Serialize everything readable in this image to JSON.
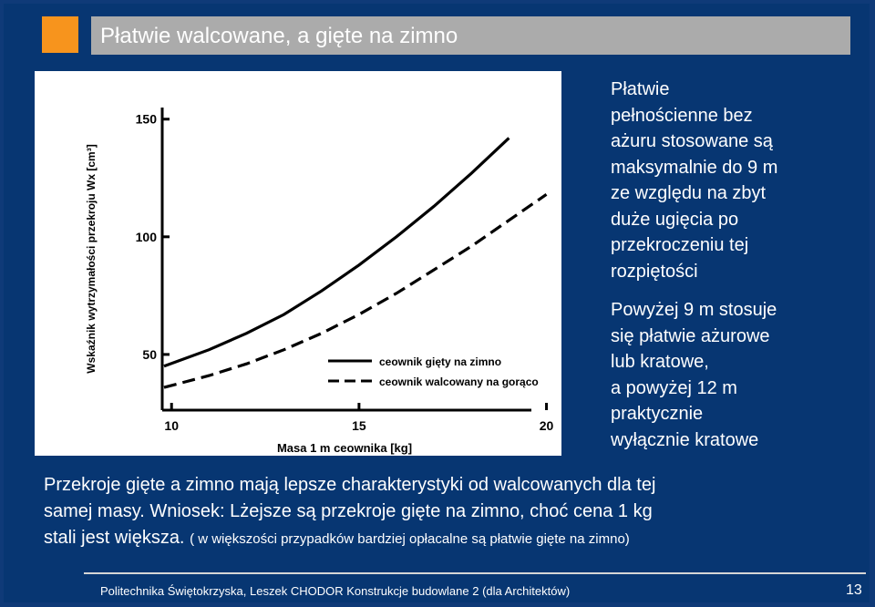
{
  "slide": {
    "title": "Płatwie walcowane, a gięte na zimno",
    "side_text_1": [
      "Płatwie",
      "pełnościenne bez",
      "ażuru stosowane są",
      "maksymalnie do 9 m",
      "ze względu na zbyt",
      "duże ugięcia po",
      "przekroczeniu tej",
      "rozpiętości"
    ],
    "side_text_2": [
      "Powyżej 9 m stosuje",
      "się płatwie ażurowe",
      "lub kratowe,",
      "a powyżej 12 m",
      "praktycznie",
      "wyłącznie kratowe"
    ],
    "body_line_1": "Przekroje gięte a zimno mają lepsze charakterystyki od walcowanych dla tej",
    "body_line_2": "samej masy. Wniosek: Lżejsze są przekroje gięte na zimno, choć cena 1 kg",
    "body_line_3": "stali jest większa.",
    "body_note": "( w większości przypadków bardziej opłacalne są płatwie gięte na zimno)",
    "footer": "Politechnika Świętokrzyska,   Leszek CHODOR   Konstrukcje budowlane  2   (dla Architektów)",
    "page_number": "13"
  },
  "colors": {
    "background": "#073672",
    "accent": "#f7941d",
    "title_bar": "#ababab"
  },
  "chart_data": {
    "type": "line",
    "xlabel": "Masa 1 m ceownika [kg]",
    "ylabel": "Wskaźnik wytrzymałości przekroju Wx [cm³]",
    "xlim": [
      9.8,
      20.4
    ],
    "ylim": [
      0,
      165
    ],
    "xticks": [
      "10",
      "15",
      "20"
    ],
    "yticks": [
      "50",
      "100",
      "150"
    ],
    "series": [
      {
        "name": "ceownik gięty na zimno",
        "style": "solid",
        "x": [
          9.8,
          11,
          12,
          13,
          14,
          15,
          16,
          17,
          18,
          19
        ],
        "y": [
          45,
          52,
          59,
          67,
          77,
          88,
          100,
          113,
          127,
          142
        ]
      },
      {
        "name": "ceownik walcowany na gorąco",
        "style": "dashed",
        "x": [
          9.8,
          11,
          12,
          13,
          14,
          15,
          16,
          17,
          18,
          19,
          20
        ],
        "y": [
          36,
          41,
          46,
          52,
          59,
          67,
          76,
          86,
          96,
          107,
          118
        ]
      }
    ]
  }
}
